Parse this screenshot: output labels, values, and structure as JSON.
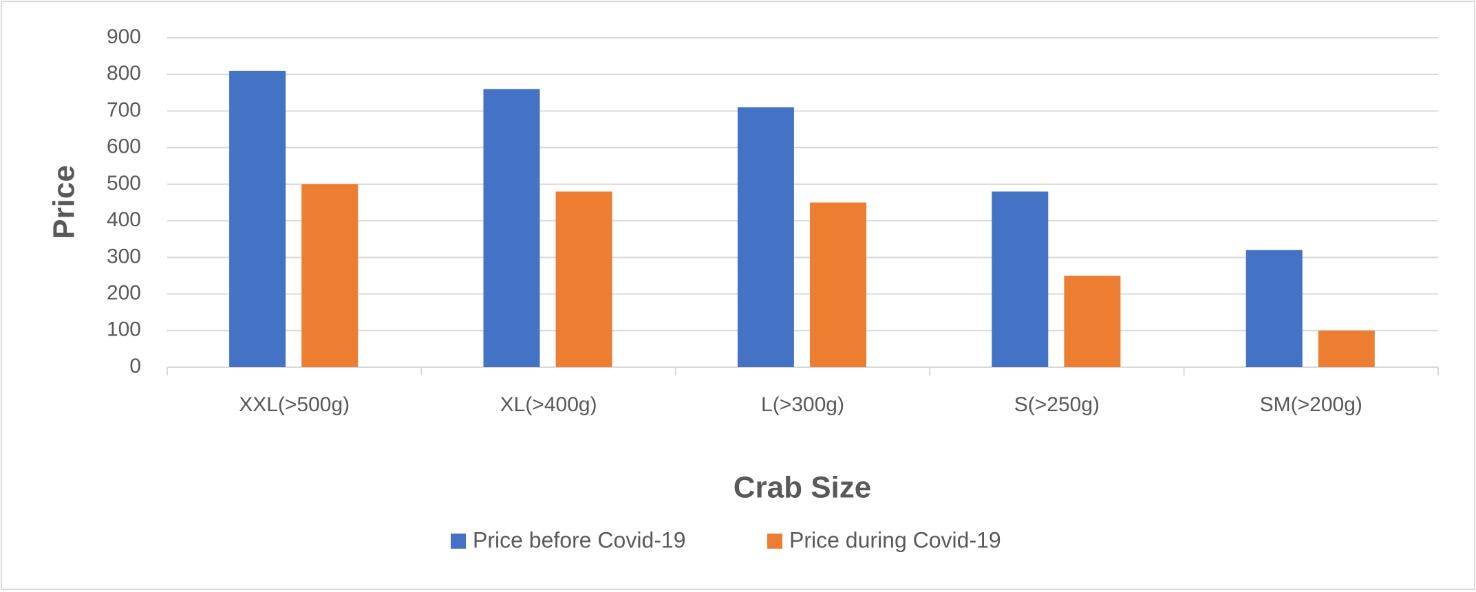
{
  "chart_data": {
    "type": "bar",
    "x_label": "Crab Size",
    "y_label": "Price",
    "categories": [
      "XXL(>500g)",
      "XL(>400g)",
      "L(>300g)",
      "S(>250g)",
      "SM(>200g)"
    ],
    "series": [
      {
        "name": "Price before Covid-19",
        "color": "#4472c4",
        "values": [
          810,
          760,
          710,
          480,
          320
        ]
      },
      {
        "name": "Price during Covid-19",
        "color": "#ed7d31",
        "values": [
          500,
          480,
          450,
          250,
          100
        ]
      }
    ],
    "ylim": [
      0,
      900
    ],
    "yticks": [
      0,
      100,
      200,
      300,
      400,
      500,
      600,
      700,
      800,
      900
    ],
    "grid": true,
    "legend": "bottom"
  }
}
